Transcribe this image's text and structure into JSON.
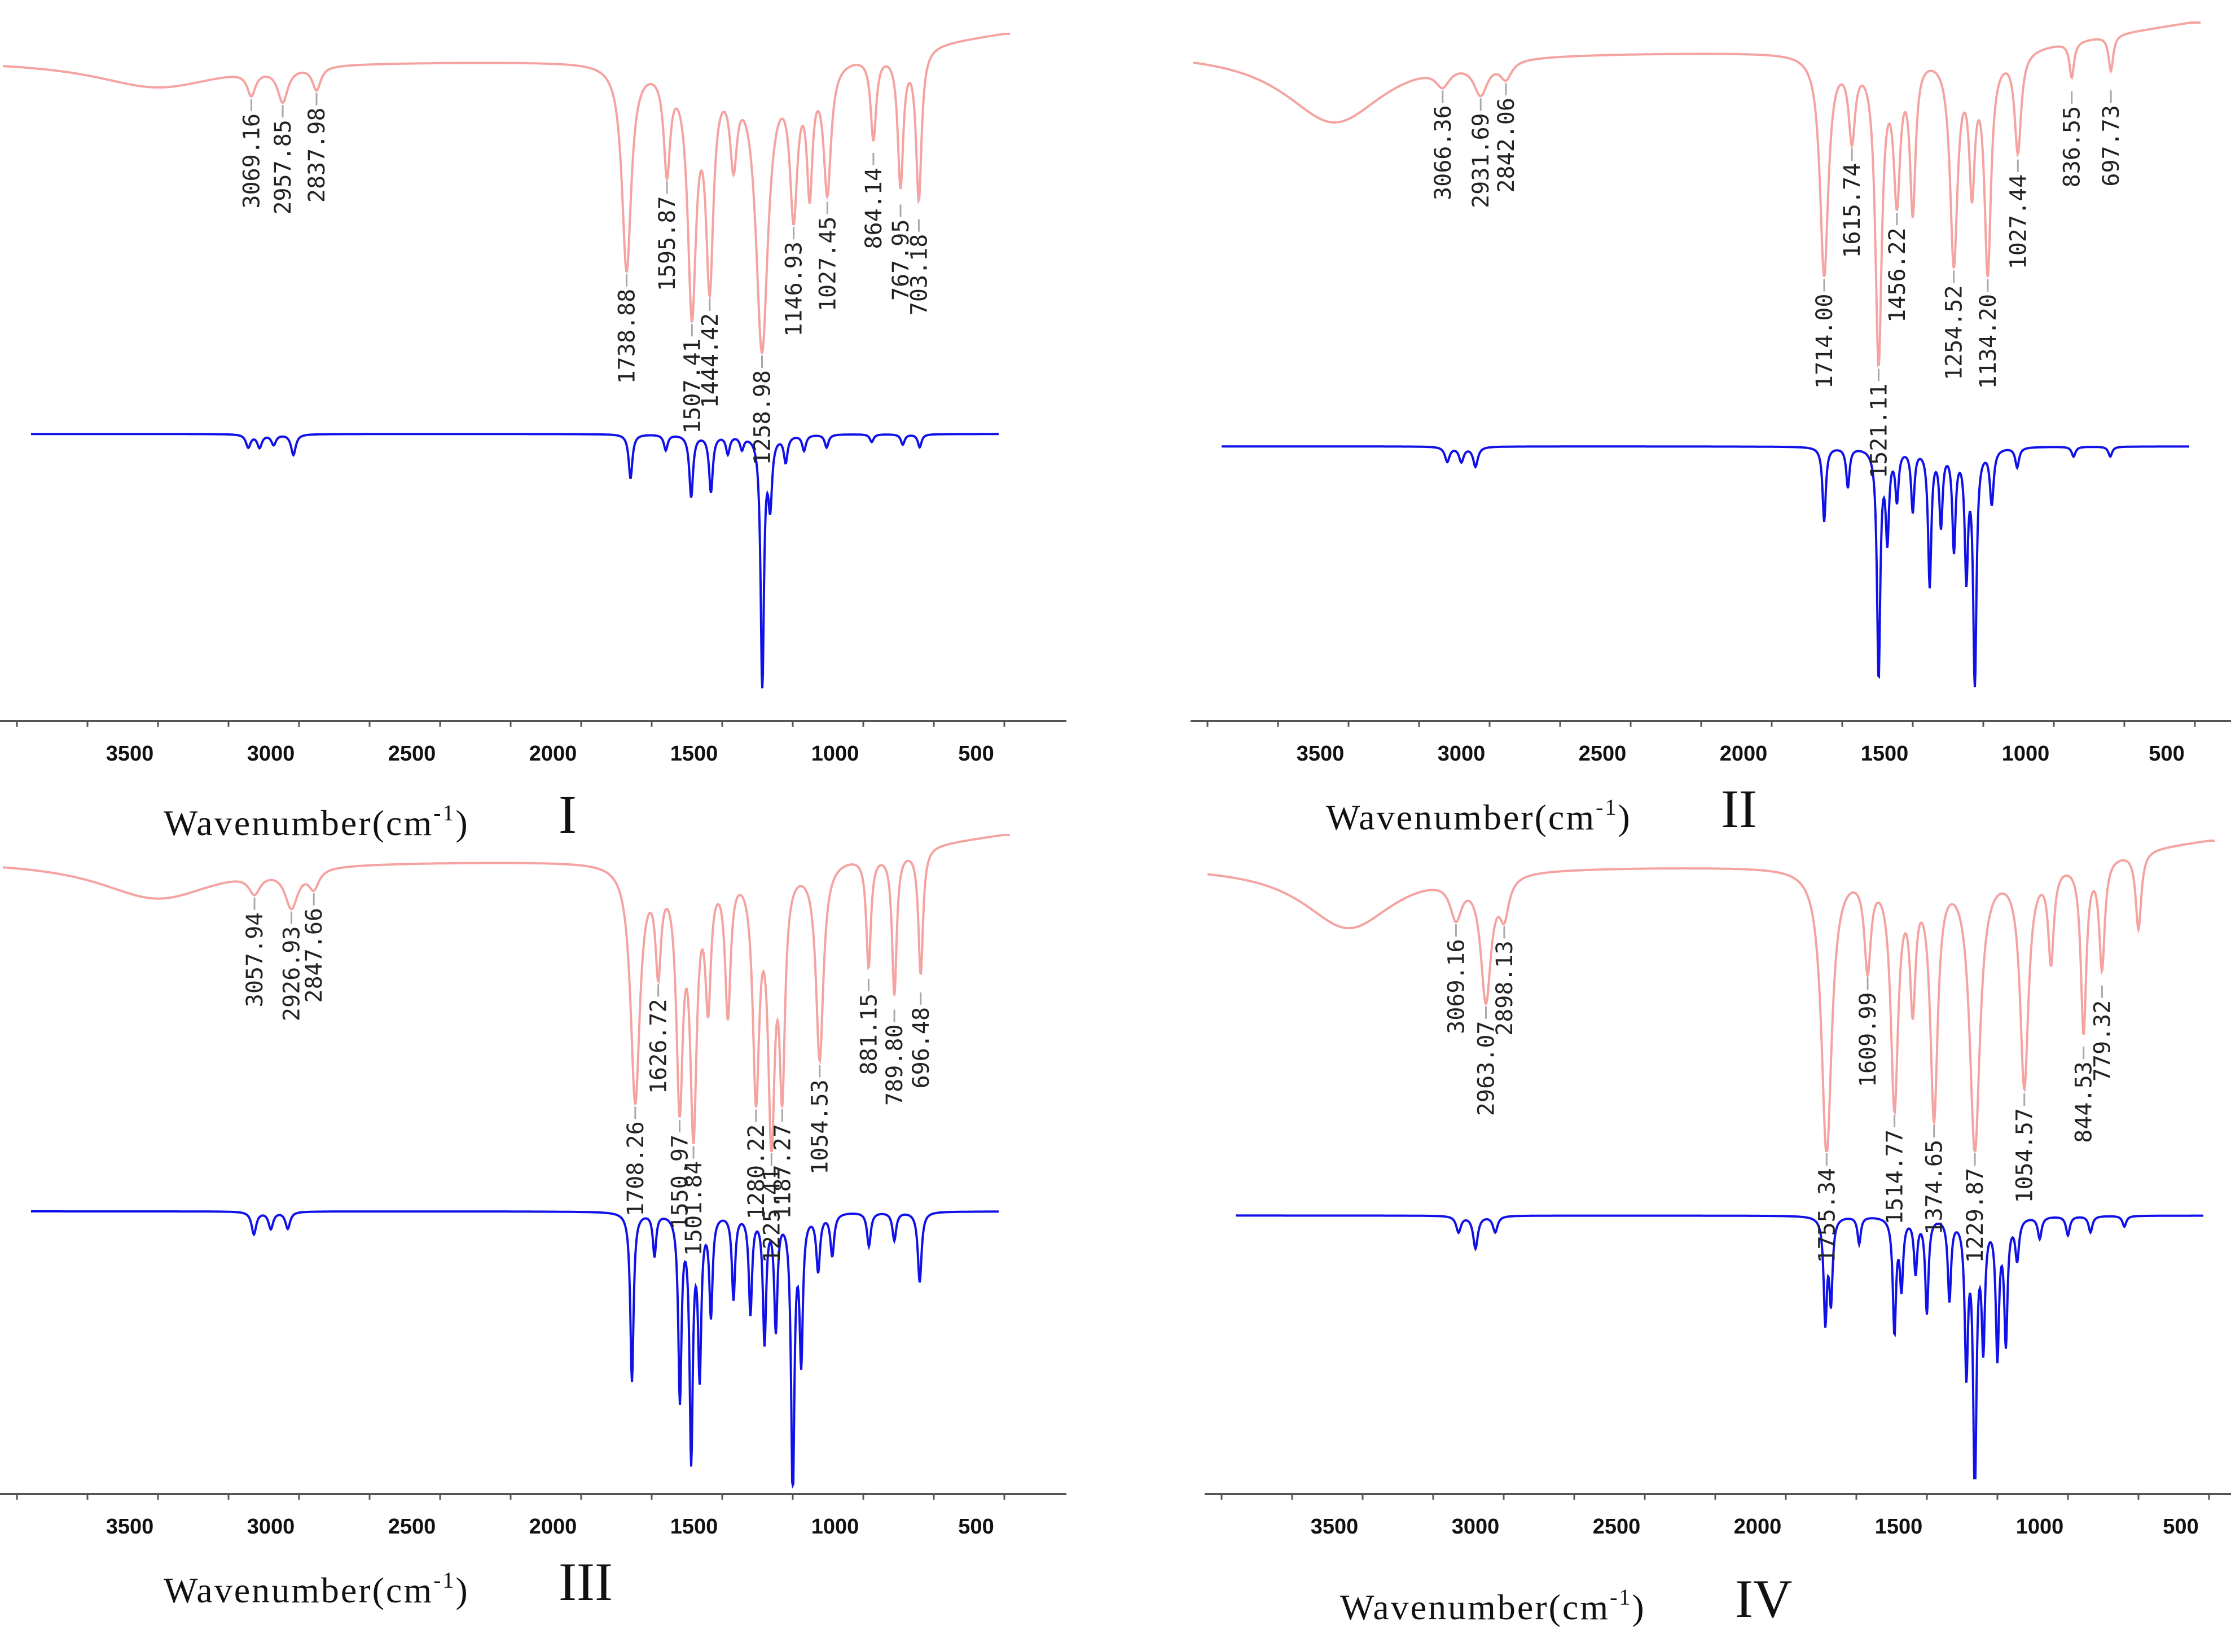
{
  "colors": {
    "experimental": "#f4a3a0",
    "calculated": "#1010e8",
    "leader": "#a8a8a8",
    "axis": "#555555",
    "text": "#111111"
  },
  "chart_data": [
    {
      "type": "line",
      "panel_label": "I",
      "xlabel": "Wavenumber",
      "xunit_base": "(cm",
      "xunit_exp": "-1",
      "xunit_close": ")",
      "xlim": [
        3950,
        300
      ],
      "xticks": [
        "3500",
        "3000",
        "2500",
        "2000",
        "1500",
        "1000",
        "500"
      ],
      "series": [
        {
          "name": "experimental",
          "baseline": 0.08,
          "absorptions": [
            [
              3400,
              0.08,
              280
            ],
            [
              3069.16,
              0.07,
              18
            ],
            [
              2957.85,
              0.1,
              22
            ],
            [
              2837.98,
              0.07,
              18
            ],
            [
              1738.88,
              0.62,
              20
            ],
            [
              1595.87,
              0.3,
              14
            ],
            [
              1507.41,
              0.72,
              18
            ],
            [
              1444.42,
              0.62,
              16
            ],
            [
              1360,
              0.25,
              15
            ],
            [
              1258.98,
              0.85,
              26
            ],
            [
              1146.93,
              0.42,
              16
            ],
            [
              1090,
              0.35,
              12
            ],
            [
              1027.45,
              0.38,
              16
            ],
            [
              864.14,
              0.25,
              12
            ],
            [
              767.95,
              0.4,
              12
            ],
            [
              703.18,
              0.45,
              12
            ]
          ]
        },
        {
          "name": "calculated",
          "baseline": 0.02,
          "absorptions": [
            [
              3080,
              0.05,
              10
            ],
            [
              3040,
              0.05,
              10
            ],
            [
              2990,
              0.04,
              10
            ],
            [
              2920,
              0.08,
              10
            ],
            [
              1725,
              0.17,
              8
            ],
            [
              1600,
              0.06,
              8
            ],
            [
              1510,
              0.24,
              8
            ],
            [
              1440,
              0.22,
              8
            ],
            [
              1380,
              0.07,
              8
            ],
            [
              1330,
              0.05,
              8
            ],
            [
              1258,
              0.98,
              7
            ],
            [
              1230,
              0.25,
              8
            ],
            [
              1175,
              0.1,
              8
            ],
            [
              1110,
              0.06,
              8
            ],
            [
              1030,
              0.05,
              8
            ],
            [
              870,
              0.03,
              8
            ],
            [
              760,
              0.04,
              8
            ],
            [
              700,
              0.05,
              8
            ]
          ]
        }
      ],
      "peak_labels": [
        "3069.16",
        "2957.85",
        "2837.98",
        "1738.88",
        "1595.87",
        "1507.41",
        "1444.42",
        "1258.98",
        "1146.93",
        "1027.45",
        "864.14",
        "767.95",
        "703.18"
      ]
    },
    {
      "type": "line",
      "panel_label": "II",
      "xlabel": "Wavenumber",
      "xunit_base": "(cm",
      "xunit_exp": "-1",
      "xunit_close": ")",
      "xlim": [
        3950,
        300
      ],
      "xticks": [
        "3500",
        "3000",
        "2500",
        "2000",
        "1500",
        "1000",
        "500"
      ],
      "series": [
        {
          "name": "experimental",
          "baseline": 0.08,
          "absorptions": [
            [
              3450,
              0.2,
              220
            ],
            [
              3066.36,
              0.05,
              30
            ],
            [
              2931.69,
              0.09,
              30
            ],
            [
              2842.06,
              0.05,
              25
            ],
            [
              1714.0,
              0.62,
              18
            ],
            [
              1615.74,
              0.22,
              14
            ],
            [
              1521.11,
              0.85,
              14
            ],
            [
              1456.22,
              0.38,
              14
            ],
            [
              1400,
              0.42,
              12
            ],
            [
              1254.52,
              0.58,
              16
            ],
            [
              1190,
              0.35,
              12
            ],
            [
              1134.2,
              0.6,
              14
            ],
            [
              1027.44,
              0.28,
              14
            ],
            [
              836.55,
              0.1,
              10
            ],
            [
              697.73,
              0.1,
              10
            ]
          ]
        },
        {
          "name": "calculated",
          "baseline": 0.03,
          "absorptions": [
            [
              3050,
              0.06,
              10
            ],
            [
              3000,
              0.06,
              10
            ],
            [
              2950,
              0.08,
              10
            ],
            [
              1714,
              0.3,
              7
            ],
            [
              1630,
              0.16,
              7
            ],
            [
              1521,
              0.92,
              7
            ],
            [
              1490,
              0.35,
              7
            ],
            [
              1456,
              0.2,
              7
            ],
            [
              1400,
              0.25,
              7
            ],
            [
              1340,
              0.55,
              7
            ],
            [
              1300,
              0.3,
              7
            ],
            [
              1254,
              0.4,
              7
            ],
            [
              1210,
              0.5,
              7
            ],
            [
              1180,
              0.95,
              7
            ],
            [
              1120,
              0.22,
              8
            ],
            [
              1030,
              0.08,
              8
            ],
            [
              830,
              0.04,
              8
            ],
            [
              700,
              0.04,
              8
            ]
          ]
        }
      ],
      "peak_labels": [
        "3066.36",
        "2931.69",
        "2842.06",
        "1714.00",
        "1615.74",
        "1521.11",
        "1456.22",
        "1254.52",
        "1134.20",
        "1027.44",
        "836.55",
        "697.73"
      ]
    },
    {
      "type": "line",
      "panel_label": "III",
      "xlabel": "Wavenumber",
      "xunit_base": "(cm",
      "xunit_exp": "-1",
      "xunit_close": ")",
      "xlim": [
        3950,
        300
      ],
      "xticks": [
        "3500",
        "3000",
        "2500",
        "2000",
        "1500",
        "1000",
        "500"
      ],
      "series": [
        {
          "name": "experimental",
          "baseline": 0.08,
          "absorptions": [
            [
              3400,
              0.12,
              260
            ],
            [
              3057.94,
              0.06,
              25
            ],
            [
              2926.93,
              0.12,
              28
            ],
            [
              2847.66,
              0.06,
              22
            ],
            [
              1708.26,
              0.75,
              20
            ],
            [
              1626.72,
              0.3,
              12
            ],
            [
              1550.97,
              0.72,
              14
            ],
            [
              1501.84,
              0.8,
              14
            ],
            [
              1450,
              0.4,
              12
            ],
            [
              1380,
              0.45,
              12
            ],
            [
              1280.22,
              0.7,
              14
            ],
            [
              1225.41,
              0.82,
              14
            ],
            [
              1187.27,
              0.65,
              12
            ],
            [
              1054.53,
              0.62,
              16
            ],
            [
              881.15,
              0.35,
              10
            ],
            [
              789.8,
              0.45,
              10
            ],
            [
              696.48,
              0.4,
              10
            ]
          ]
        },
        {
          "name": "calculated",
          "baseline": 0.03,
          "absorptions": [
            [
              3060,
              0.08,
              10
            ],
            [
              3000,
              0.06,
              10
            ],
            [
              2940,
              0.06,
              10
            ],
            [
              1720,
              0.6,
              7
            ],
            [
              1640,
              0.15,
              7
            ],
            [
              1550,
              0.65,
              7
            ],
            [
              1510,
              0.85,
              7
            ],
            [
              1480,
              0.55,
              7
            ],
            [
              1440,
              0.35,
              7
            ],
            [
              1360,
              0.3,
              7
            ],
            [
              1300,
              0.35,
              7
            ],
            [
              1250,
              0.45,
              7
            ],
            [
              1210,
              0.4,
              7
            ],
            [
              1150,
              1.0,
              7
            ],
            [
              1120,
              0.5,
              7
            ],
            [
              1060,
              0.2,
              8
            ],
            [
              1010,
              0.15,
              8
            ],
            [
              880,
              0.12,
              8
            ],
            [
              790,
              0.1,
              8
            ],
            [
              700,
              0.25,
              8
            ]
          ]
        }
      ],
      "peak_labels": [
        "3057.94",
        "2926.93",
        "2847.66",
        "1708.26",
        "1626.72",
        "1550.97",
        "1501.84",
        "1280.22",
        "1225.41",
        "1187.27",
        "1054.53",
        "881.15",
        "789.80",
        "696.48"
      ]
    },
    {
      "type": "line",
      "panel_label": "IV",
      "xlabel": "Wavenumber",
      "xunit_base": "(cm",
      "xunit_exp": "-1",
      "xunit_close": ")",
      "xlim": [
        3950,
        300
      ],
      "xticks": [
        "3500",
        "3000",
        "2500",
        "2000",
        "1500",
        "1000",
        "500"
      ],
      "series": [
        {
          "name": "experimental",
          "baseline": 0.08,
          "absorptions": [
            [
              3450,
              0.2,
              200
            ],
            [
              3069.16,
              0.12,
              25
            ],
            [
              2963.07,
              0.4,
              22
            ],
            [
              2898.13,
              0.12,
              20
            ],
            [
              1755.34,
              0.92,
              22
            ],
            [
              1609.99,
              0.3,
              14
            ],
            [
              1514.77,
              0.75,
              16
            ],
            [
              1450,
              0.4,
              12
            ],
            [
              1374.65,
              0.78,
              16
            ],
            [
              1229.87,
              0.9,
              22
            ],
            [
              1054.57,
              0.7,
              18
            ],
            [
              960,
              0.3,
              12
            ],
            [
              844.53,
              0.55,
              12
            ],
            [
              779.32,
              0.35,
              12
            ],
            [
              650,
              0.25,
              12
            ]
          ]
        },
        {
          "name": "calculated",
          "baseline": 0.03,
          "absorptions": [
            [
              3060,
              0.06,
              10
            ],
            [
              3000,
              0.12,
              10
            ],
            [
              2930,
              0.06,
              10
            ],
            [
              1760,
              0.38,
              7
            ],
            [
              1740,
              0.3,
              7
            ],
            [
              1640,
              0.1,
              7
            ],
            [
              1515,
              0.42,
              7
            ],
            [
              1490,
              0.25,
              7
            ],
            [
              1440,
              0.2,
              7
            ],
            [
              1400,
              0.35,
              7
            ],
            [
              1320,
              0.3,
              7
            ],
            [
              1260,
              0.55,
              7
            ],
            [
              1230,
              1.0,
              7
            ],
            [
              1200,
              0.45,
              7
            ],
            [
              1150,
              0.5,
              7
            ],
            [
              1120,
              0.45,
              7
            ],
            [
              1080,
              0.15,
              8
            ],
            [
              1000,
              0.08,
              8
            ],
            [
              900,
              0.07,
              8
            ],
            [
              820,
              0.06,
              8
            ],
            [
              700,
              0.04,
              8
            ]
          ]
        }
      ],
      "peak_labels": [
        "3069.16",
        "2963.07",
        "2898.13",
        "1755.34",
        "1609.99",
        "1514.77",
        "1374.65",
        "1229.87",
        "1054.57",
        "844.53",
        "779.32"
      ]
    }
  ]
}
